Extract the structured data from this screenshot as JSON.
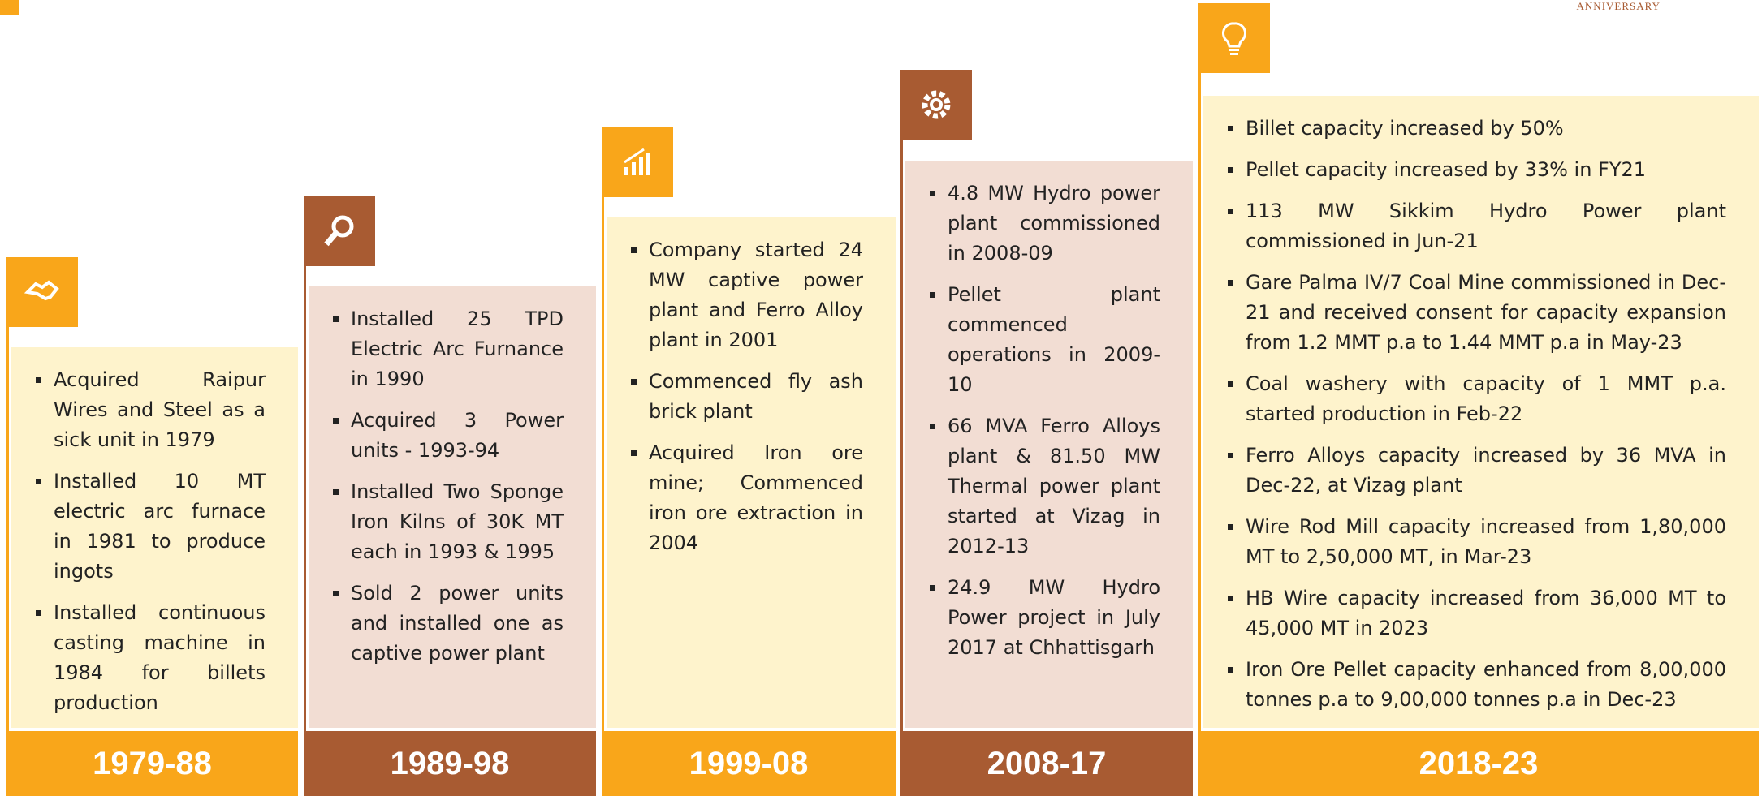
{
  "header": {
    "corner_text": "ANNIVERSARY"
  },
  "columns": [
    {
      "period": "1979-88",
      "items": [
        "Acquired Raipur Wires and Steel as a sick unit in 1979",
        "Installed 10 MT electric arc furnace in 1981 to produce ingots",
        "Installed continuous casting machine in 1984 for billets production"
      ]
    },
    {
      "period": "1989-98",
      "items": [
        "Installed 25 TPD Electric Arc Furnance in 1990",
        "Acquired 3 Power units - 1993-94",
        "Installed Two Sponge Iron Kilns of 30K MT each in 1993 & 1995",
        "Sold 2 power units and installed one as captive power plant"
      ]
    },
    {
      "period": "1999-08",
      "items": [
        "Company started 24 MW captive power plant and Ferro Alloy plant in 2001",
        "Commenced fly ash brick plant",
        "Acquired Iron ore mine; Commenced iron ore extraction in 2004"
      ]
    },
    {
      "period": "2008-17",
      "items": [
        "4.8 MW Hydro power plant commissioned in 2008-09",
        "Pellet plant commenced operations in 2009-10",
        "66 MVA Ferro Alloys plant & 81.50 MW Thermal power plant started at Vizag in 2012-13",
        "24.9 MW Hydro Power project in July 2017 at Chhattisgarh"
      ]
    },
    {
      "period": "2018-23",
      "items": [
        "Billet capacity increased by 50%",
        "Pellet capacity increased by 33% in FY21",
        "113 MW Sikkim Hydro Power plant commissioned in Jun-21",
        "Gare Palma IV/7 Coal Mine commissioned in Dec-21 and received consent for capacity expansion from 1.2 MMT p.a to 1.44 MMT p.a in May-23",
        "Coal washery with capacity of 1 MMT p.a. started production in Feb-22",
        "Ferro Alloys capacity increased by 36 MVA in Dec-22, at Vizag plant",
        "Wire Rod Mill capacity increased from 1,80,000 MT to 2,50,000 MT, in Mar-23",
        "HB Wire capacity increased from 36,000 MT to 45,000 MT in 2023",
        "Iron Ore Pellet capacity enhanced from 8,00,000 tonnes p.a to 9,00,000 tonnes p.a in Dec-23"
      ]
    }
  ]
}
